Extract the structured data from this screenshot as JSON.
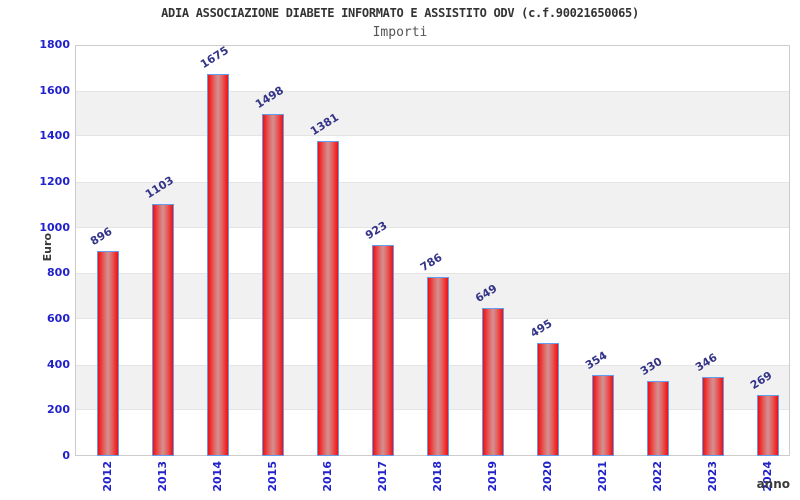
{
  "header": {
    "title": "ADIA ASSOCIAZIONE DIABETE INFORMATO E ASSISTITO ODV (c.f.90021650065)",
    "subtitle": "Importi"
  },
  "chart_data": {
    "type": "bar",
    "title": "ADIA ASSOCIAZIONE DIABETE INFORMATO E ASSISTITO ODV (c.f.90021650065)",
    "subtitle": "Importi",
    "xlabel": "anno",
    "ylabel": "Euro",
    "categories": [
      "2012",
      "2013",
      "2014",
      "2015",
      "2016",
      "2017",
      "2018",
      "2019",
      "2020",
      "2021",
      "2022",
      "2023",
      "2024"
    ],
    "values": [
      896,
      1103,
      1675,
      1498,
      1381,
      923,
      786,
      649,
      495,
      354,
      330,
      346,
      269
    ],
    "ylim": [
      0,
      1800
    ],
    "yticks": [
      0,
      200,
      400,
      600,
      800,
      1000,
      1200,
      1400,
      1600,
      1800
    ],
    "bar_value_labels_shown": true,
    "grid": "alternating-horizontal-bands",
    "legend_position": "none",
    "colors": {
      "title_color": "#333333",
      "subtitle_color": "#555555",
      "axis_label_blue": "#2222cc",
      "value_label": "#333388",
      "axis_title_color": "#3a3a3a",
      "bar_red": "#ee1010",
      "bar_center": "#d29191",
      "bar_border": "#649ded",
      "band_gray": "#f1f1f1",
      "grid_line": "#e4e4e4",
      "plot_border": "#cccccc"
    }
  }
}
